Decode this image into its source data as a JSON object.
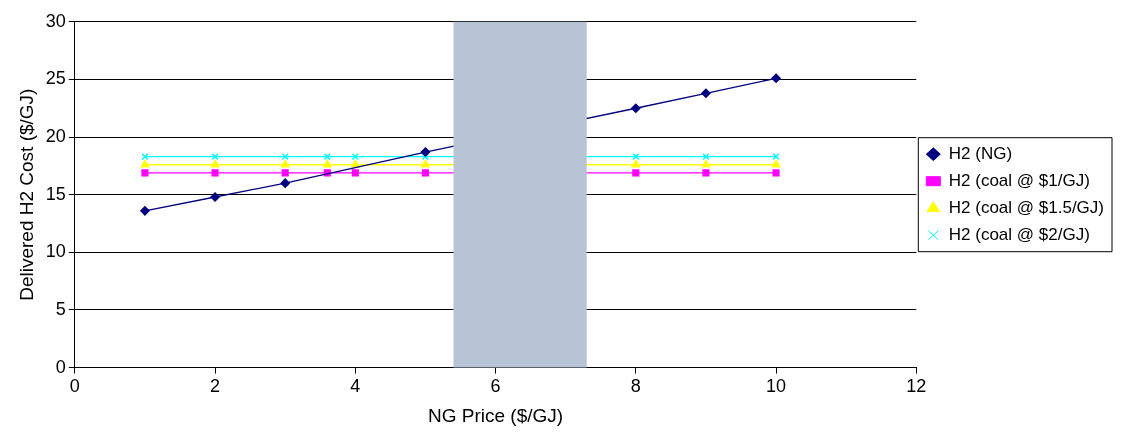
{
  "chart_data": {
    "type": "line",
    "xlabel": "NG Price ($/GJ)",
    "ylabel": "Delivered H2 Cost ($/GJ)",
    "xlim": [
      0,
      12
    ],
    "xticks": [
      0,
      2,
      4,
      6,
      8,
      10,
      12
    ],
    "ylim": [
      0,
      30
    ],
    "yticks": [
      0,
      5,
      10,
      15,
      20,
      25,
      30
    ],
    "grid": "y",
    "legend": "right",
    "series": [
      {
        "name": "H2 (NG)",
        "color": "#000080",
        "marker": "diamond",
        "x": [
          1,
          2,
          3,
          5,
          8,
          9,
          10
        ],
        "values": [
          13.6,
          14.8,
          16.0,
          18.7,
          22.5,
          23.8,
          25.1
        ]
      },
      {
        "name": "H2 (coal @ $1/GJ)",
        "color": "#ff00ff",
        "marker": "square",
        "x": [
          1,
          2,
          3,
          3.6,
          4,
          5,
          8,
          9,
          10
        ],
        "values": [
          16.9,
          16.9,
          16.9,
          16.9,
          16.9,
          16.9,
          16.9,
          16.9,
          16.9
        ]
      },
      {
        "name": "H2 (coal @ $1.5/GJ)",
        "color": "#ffff00",
        "marker": "triangle",
        "x": [
          1,
          2,
          3,
          3.6,
          4,
          5,
          8,
          9,
          10
        ],
        "values": [
          17.6,
          17.6,
          17.6,
          17.6,
          17.6,
          17.6,
          17.6,
          17.6,
          17.6
        ]
      },
      {
        "name": "H2 (coal @ $2/GJ)",
        "color": "#00ffff",
        "marker": "cross",
        "x": [
          1,
          2,
          3,
          3.6,
          4,
          5,
          8,
          9,
          10
        ],
        "values": [
          18.3,
          18.3,
          18.3,
          18.3,
          18.3,
          18.3,
          18.3,
          18.3,
          18.3
        ]
      }
    ],
    "bands": [
      {
        "axis": "x",
        "from": 5.4,
        "to": 7.3,
        "color": "#b8c4d6"
      }
    ]
  }
}
